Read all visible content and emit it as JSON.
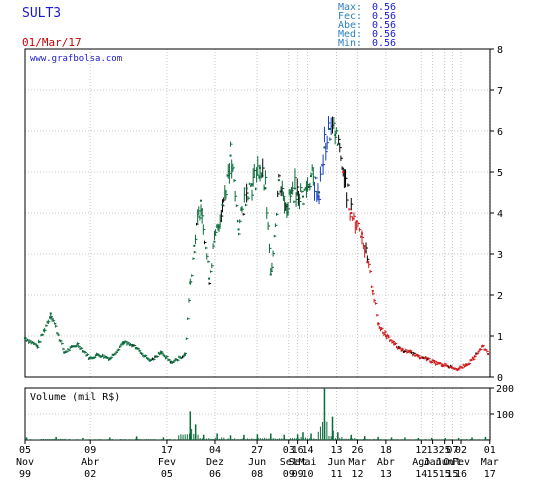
{
  "colors": {
    "ticker": "#1a1ad0",
    "date": "#cc0000",
    "stats_label": "#2a7fbf",
    "stats_value": "#1a1ad0",
    "watermark": "#1a1ad0",
    "text": "#000000",
    "grid": "#c8c8c8",
    "frame": "#000000",
    "up": "#0a6a3a",
    "down": "#d01a1a",
    "dark": "#000000",
    "blue": "#1a3fbf"
  },
  "header": {
    "ticker": "SULT3",
    "date": "01/Mar/17",
    "watermark": "www.grafbolsa.com",
    "stats": [
      {
        "label": "Max:",
        "value": "0.56"
      },
      {
        "label": "Fec:",
        "value": "0.56"
      },
      {
        "label": "Abe:",
        "value": "0.56"
      },
      {
        "label": "Med:",
        "value": "0.56"
      },
      {
        "label": "Min:",
        "value": "0.56"
      }
    ]
  },
  "chart_data": [
    {
      "type": "line",
      "ylim": [
        0,
        8
      ],
      "y_ticks": [
        "0",
        "1",
        "2",
        "3",
        "4",
        "5",
        "6",
        "7",
        "8"
      ],
      "grid": true,
      "x": [
        1999.84,
        2000.3,
        2000.8,
        2001.3,
        2001.8,
        2002.25,
        2002.55,
        2003.0,
        2003.5,
        2004.0,
        2004.5,
        2004.9,
        2005.3,
        2005.8,
        2006.0,
        2006.15,
        2006.4,
        2006.7,
        2006.9,
        2007.2,
        2007.5,
        2007.8,
        2008.1,
        2008.3,
        2008.6,
        2008.8,
        2009.0,
        2009.3,
        2009.6,
        2009.9,
        2010.2,
        2010.5,
        2010.8,
        2011.0,
        2011.2,
        2011.4,
        2011.7,
        2012.0,
        2012.2,
        2012.4,
        2012.6,
        2012.8,
        2013.0,
        2013.3,
        2013.6,
        2013.9,
        2014.2,
        2014.5,
        2014.8,
        2015.1,
        2015.4,
        2015.7,
        2016.0,
        2016.3,
        2016.6,
        2016.9,
        2017.1
      ],
      "series": [
        {
          "values": [
            0.95,
            0.75,
            1.55,
            0.6,
            0.8,
            0.45,
            0.55,
            0.45,
            0.85,
            0.7,
            0.4,
            0.6,
            0.35,
            0.55,
            2.3,
            3.2,
            4.3,
            2.4,
            3.3,
            4.2,
            5.4,
            3.6,
            4.6,
            4.7,
            5.1,
            4.6,
            2.5,
            4.8,
            4.2,
            4.6,
            4.4,
            4.9,
            4.5,
            5.6,
            6.05,
            5.9,
            5.0,
            4.0,
            3.8,
            3.5,
            2.8,
            2.1,
            1.3,
            1.0,
            0.8,
            0.65,
            0.6,
            0.5,
            0.45,
            0.35,
            0.3,
            0.25,
            0.2,
            0.3,
            0.5,
            0.75,
            0.56
          ]
        }
      ]
    },
    {
      "type": "bar",
      "title": "Volume (mil R$)",
      "ylim": [
        0,
        200
      ],
      "y_ticks": [
        "100",
        "200"
      ],
      "x_tick_labels": [
        [
          "05",
          "Nov",
          "99"
        ],
        [
          "09",
          "Abr",
          "02"
        ],
        [
          "17",
          "Fev",
          "05"
        ],
        [
          "04",
          "Dez",
          "06"
        ],
        [
          "27",
          "Jun",
          "08"
        ],
        [
          "03",
          "Set",
          "09"
        ],
        [
          "16",
          "Set",
          "09"
        ],
        [
          "14",
          "Mai",
          "10"
        ],
        [
          "13",
          "Jun",
          "11"
        ],
        [
          "26",
          "Mar",
          "12"
        ],
        [
          "18",
          "Abr",
          "13"
        ],
        [
          "12",
          "Ago",
          "14"
        ],
        [
          "13",
          "Jan",
          "15"
        ],
        [
          "25",
          "Jun",
          "15"
        ],
        [
          "07",
          "Out",
          "15"
        ],
        [
          "02",
          "Fev",
          "16"
        ],
        [
          "01",
          "Mar",
          "17"
        ]
      ],
      "x": [
        1999.9,
        2001.0,
        2002.0,
        2003.0,
        2004.0,
        2005.0,
        2006.0,
        2006.2,
        2006.5,
        2007.0,
        2007.5,
        2008.0,
        2008.5,
        2009.0,
        2009.5,
        2010.0,
        2010.2,
        2010.5,
        2011.0,
        2011.3,
        2011.5,
        2012.0,
        2012.5,
        2013.0,
        2013.5,
        2014.0,
        2014.5,
        2015.0,
        2015.5,
        2016.0,
        2016.5,
        2017.0
      ],
      "values": [
        10,
        12,
        8,
        10,
        14,
        10,
        110,
        60,
        20,
        25,
        18,
        20,
        22,
        25,
        20,
        22,
        30,
        25,
        200,
        90,
        30,
        20,
        15,
        12,
        10,
        10,
        8,
        8,
        8,
        8,
        10,
        12
      ]
    }
  ]
}
